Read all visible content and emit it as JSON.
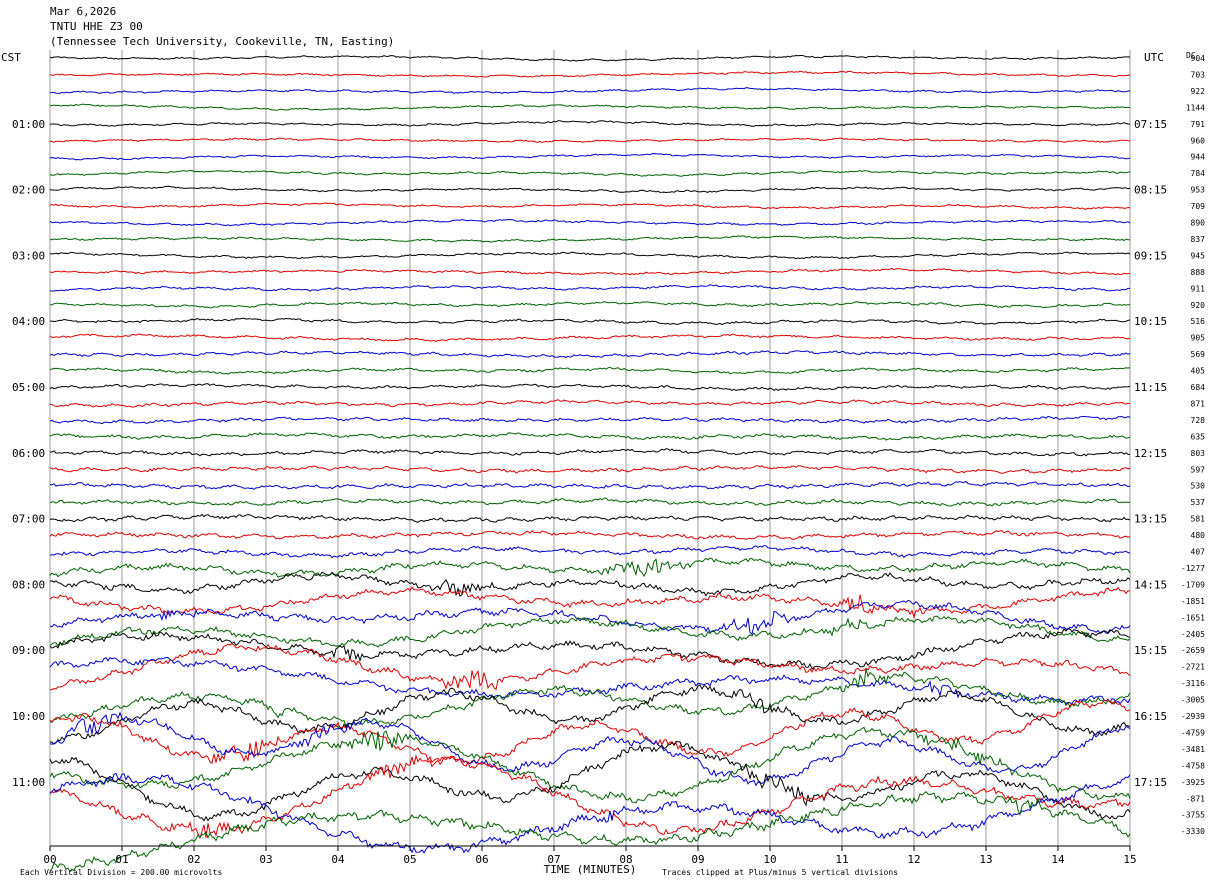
{
  "header": {
    "date": "Mar 6,2026",
    "station": "TNTU HHE Z3 00",
    "location": "(Tennessee Tech University, Cookeville, TN, Easting)"
  },
  "left_timezone": "CST",
  "right_timezone": "UTC",
  "dc_label": "DC",
  "footer": {
    "scale_note": "Each Vertical Division =  200.00 microvolts",
    "clip_note": "Traces clipped at Plus/minus 5 vertical divisions"
  },
  "chart_data": {
    "type": "line",
    "subtype": "helicorder",
    "xlabel": "TIME (MINUTES)",
    "x_ticks": [
      "00",
      "01",
      "02",
      "03",
      "04",
      "05",
      "06",
      "07",
      "08",
      "09",
      "10",
      "11",
      "12",
      "13",
      "14",
      "15"
    ],
    "xlim": [
      0,
      15
    ],
    "left_hour_labels": [
      "01:00",
      "02:00",
      "03:00",
      "04:00",
      "05:00",
      "06:00",
      "07:00",
      "08:00",
      "09:00",
      "10:00",
      "11:00"
    ],
    "right_hour_labels": [
      "07:15",
      "08:15",
      "09:15",
      "10:15",
      "11:15",
      "12:15",
      "13:15",
      "14:15",
      "15:15",
      "16:15",
      "17:15"
    ],
    "trace_colors": [
      "#000000",
      "#e00000",
      "#0000d0",
      "#006000"
    ],
    "dc_offsets": [
      904,
      703,
      922,
      1144,
      791,
      960,
      944,
      784,
      953,
      709,
      890,
      837,
      945,
      888,
      911,
      920,
      516,
      905,
      569,
      405,
      684,
      871,
      728,
      635,
      803,
      597,
      530,
      537,
      581,
      480,
      407,
      -1277,
      -1709,
      -1851,
      -1651,
      -2405,
      -2659,
      -2721,
      -3116,
      -3005,
      -2939,
      -4759,
      -3481,
      -4758,
      -3925,
      -871,
      -3755,
      -3330
    ],
    "trace_count": 48,
    "grid": true
  }
}
